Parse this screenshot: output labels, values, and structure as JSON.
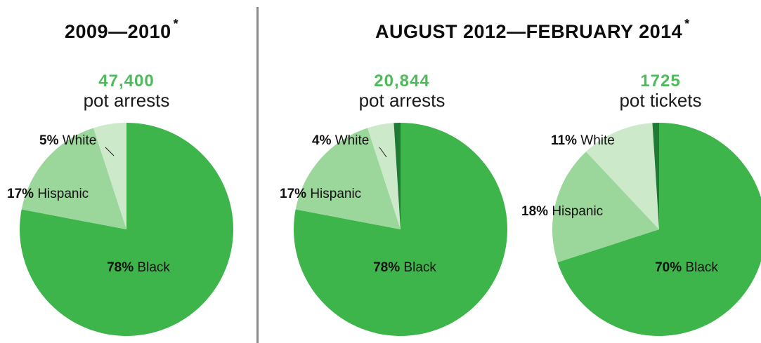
{
  "chart_data": [
    {
      "type": "pie",
      "title": "2009—2010",
      "title_mark": "*",
      "count": "47,400",
      "count_label": "pot arrests",
      "slices": [
        {
          "name": "Black",
          "percent": 78,
          "label": "78% Black",
          "color": "#3db54a"
        },
        {
          "name": "Hispanic",
          "percent": 17,
          "label": "17% Hispanic",
          "color": "#9bd69b"
        },
        {
          "name": "White",
          "percent": 5,
          "label": "5% White",
          "color": "#cce9c9"
        }
      ]
    },
    {
      "type": "pie",
      "title": "AUGUST 2012—FEBRUARY 2014",
      "title_mark": "*",
      "count": "20,844",
      "count_label": "pot arrests",
      "slices": [
        {
          "name": "Black",
          "percent": 78,
          "label": "78% Black",
          "color": "#3db54a"
        },
        {
          "name": "Hispanic",
          "percent": 17,
          "label": "17% Hispanic",
          "color": "#9bd69b"
        },
        {
          "name": "White",
          "percent": 4,
          "label": "4% White",
          "color": "#cce9c9"
        },
        {
          "name": "Other",
          "percent": 1,
          "label": "",
          "color": "#1e7a34"
        }
      ]
    },
    {
      "type": "pie",
      "count": "1725",
      "count_label": "pot tickets",
      "slices": [
        {
          "name": "Black",
          "percent": 70,
          "label": "70% Black",
          "color": "#3db54a"
        },
        {
          "name": "Hispanic",
          "percent": 18,
          "label": "18% Hispanic",
          "color": "#9bd69b"
        },
        {
          "name": "White",
          "percent": 11,
          "label": "11% White",
          "color": "#cce9c9"
        },
        {
          "name": "Other",
          "percent": 1,
          "label": "",
          "color": "#1e7a34"
        }
      ]
    }
  ]
}
